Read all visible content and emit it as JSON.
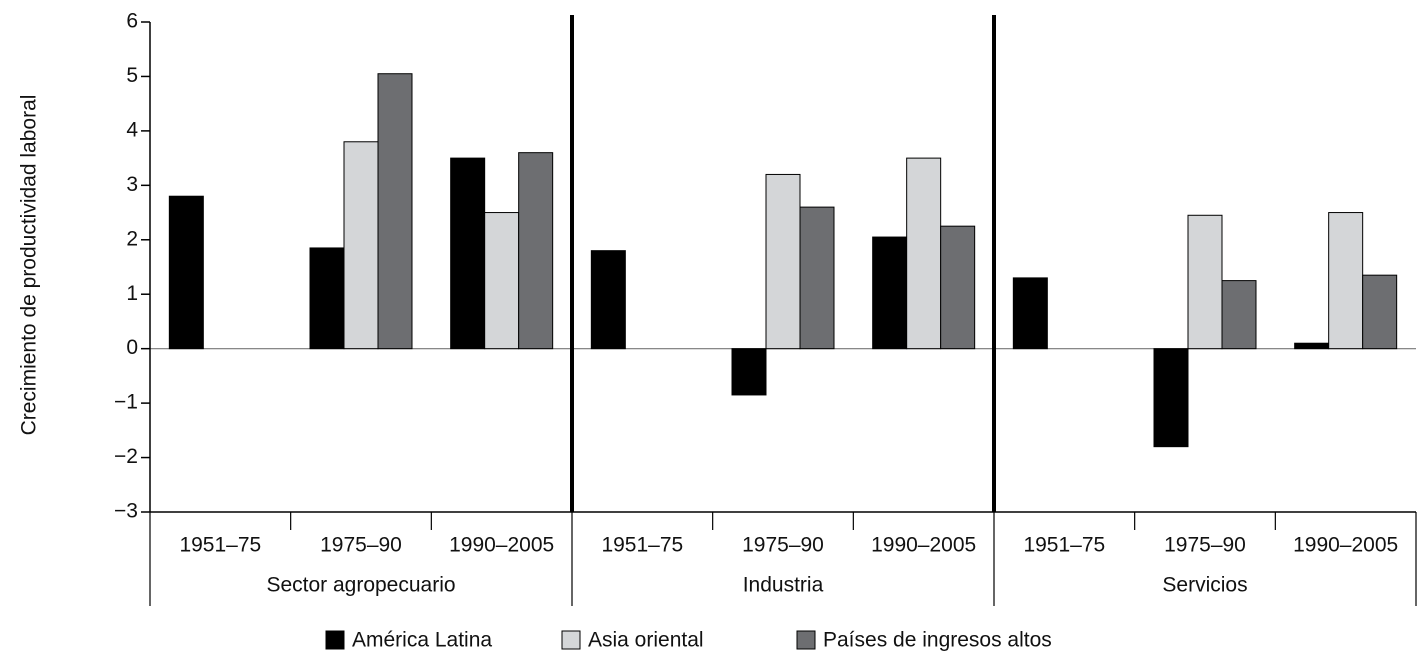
{
  "chart_data": {
    "type": "bar",
    "ylabel": "Crecimiento de productividad laboral",
    "categories": [
      "1951–75",
      "1975–90",
      "1990–2005",
      "1951–75",
      "1975–90",
      "1990–2005",
      "1951–75",
      "1975–90",
      "1990–2005"
    ],
    "groups": [
      "Sector agropecuario",
      "Industria",
      "Servicios"
    ],
    "series": [
      {
        "name": "América Latina",
        "color": "#000000",
        "values": [
          2.8,
          1.85,
          3.5,
          1.8,
          -0.85,
          2.05,
          1.3,
          -1.8,
          0.1
        ]
      },
      {
        "name": "Asia oriental",
        "color": "#d4d6d8",
        "values": [
          null,
          3.8,
          2.5,
          null,
          3.2,
          3.5,
          null,
          2.45,
          2.5
        ]
      },
      {
        "name": "Países de ingresos altos",
        "color": "#6d6e71",
        "values": [
          null,
          5.05,
          3.6,
          null,
          2.6,
          2.25,
          null,
          1.25,
          1.35
        ]
      }
    ],
    "ylim": [
      -3,
      6
    ],
    "yticks": [
      {
        "value": -3,
        "label": "−3"
      },
      {
        "value": -2,
        "label": "−2"
      },
      {
        "value": -1,
        "label": "−1"
      },
      0,
      1,
      2,
      3,
      4,
      5,
      6
    ]
  }
}
